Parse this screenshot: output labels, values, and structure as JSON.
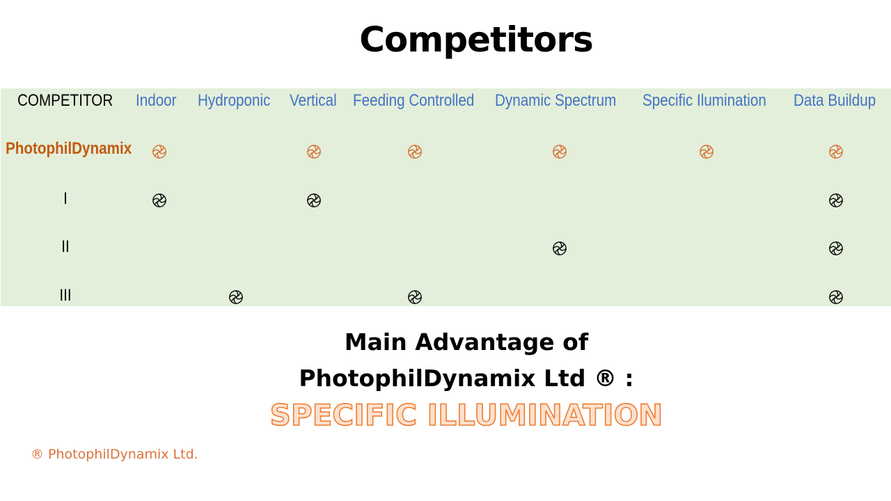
{
  "title": "Competitors",
  "table": {
    "columns": [
      "COMPETITOR",
      "Indoor",
      "Hydroponic",
      "Vertical",
      "Feeding Controlled",
      "Dynamic  Spectrum",
      "Specific Ilumination",
      "Data Buildup"
    ],
    "rows": [
      {
        "name": "PhotophilDynamix",
        "marks": [
          true,
          false,
          true,
          true,
          true,
          true,
          true
        ]
      },
      {
        "name": "I",
        "marks": [
          true,
          false,
          true,
          false,
          false,
          false,
          true
        ]
      },
      {
        "name": "II",
        "marks": [
          false,
          false,
          false,
          false,
          true,
          false,
          true
        ]
      },
      {
        "name": "III",
        "marks": [
          false,
          true,
          false,
          true,
          false,
          false,
          true
        ]
      }
    ],
    "mark_icon": "spiral-icon",
    "colors": {
      "header": "#4472c4",
      "brand": "#c55a11",
      "background": "#e3efda",
      "brand_mark": "#d9733a",
      "competitor_mark": "#111111"
    }
  },
  "advantage": {
    "line1": "Main Advantage of",
    "line2": "PhotophilDynamix Ltd ® :",
    "highlight": "SPECIFIC ILLUMINATION"
  },
  "footnote": "® PhotophilDynamix Ltd."
}
